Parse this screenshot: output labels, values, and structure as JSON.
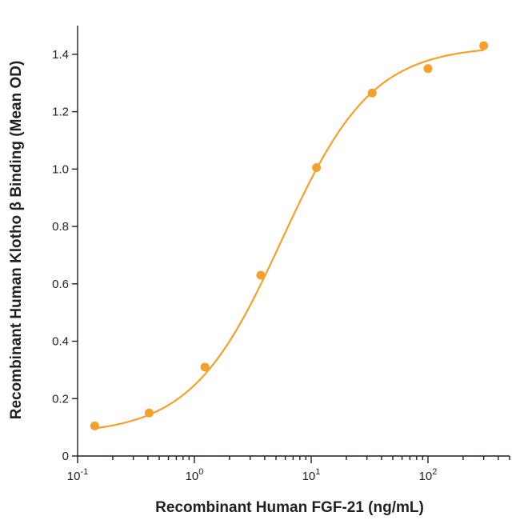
{
  "chart_data": {
    "type": "scatter",
    "xlabel": "Recombinant Human FGF-21 (ng/mL)",
    "ylabel": "Recombinant Human Klotho β Binding (Mean OD)",
    "xscale": "log",
    "xlim": [
      0.1,
      500
    ],
    "ylim": [
      0,
      1.5
    ],
    "x_ticks": [
      {
        "value": 0.1,
        "base": "10",
        "exp": "-1"
      },
      {
        "value": 1,
        "base": "10",
        "exp": "0"
      },
      {
        "value": 10,
        "base": "10",
        "exp": "1"
      },
      {
        "value": 100,
        "base": "10",
        "exp": "2"
      }
    ],
    "y_ticks": [
      {
        "value": 0,
        "label": "0"
      },
      {
        "value": 0.2,
        "label": "0.2"
      },
      {
        "value": 0.4,
        "label": "0.4"
      },
      {
        "value": 0.6,
        "label": "0.6"
      },
      {
        "value": 0.8,
        "label": "0.8"
      },
      {
        "value": 1.0,
        "label": "1.0"
      },
      {
        "value": 1.2,
        "label": "1.2"
      },
      {
        "value": 1.4,
        "label": "1.4"
      }
    ],
    "series": [
      {
        "color": "#f5a02a",
        "points": [
          {
            "x": 0.14,
            "y": 0.105
          },
          {
            "x": 0.41,
            "y": 0.15
          },
          {
            "x": 1.23,
            "y": 0.31
          },
          {
            "x": 3.7,
            "y": 0.63
          },
          {
            "x": 11.1,
            "y": 1.005
          },
          {
            "x": 33.3,
            "y": 1.265
          },
          {
            "x": 100,
            "y": 1.35
          },
          {
            "x": 300,
            "y": 1.43
          }
        ],
        "fit": {
          "model": "4PL",
          "bottom": 0.075,
          "top": 1.43,
          "ec50": 5.6,
          "hill": 1.12
        }
      }
    ],
    "grid": false,
    "legend": "none"
  }
}
